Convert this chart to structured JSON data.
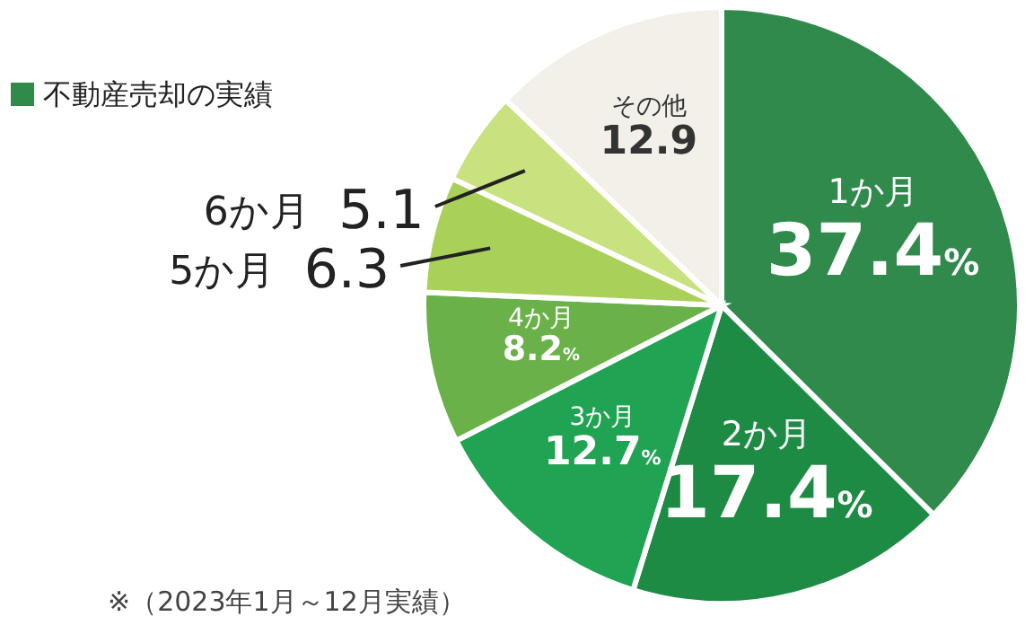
{
  "chart_data": {
    "type": "pie",
    "legend_title": "不動産売却の実績",
    "categories": [
      "1か月",
      "2か月",
      "3か月",
      "4か月",
      "5か月",
      "6か月",
      "その他"
    ],
    "values": [
      37.4,
      17.4,
      12.7,
      8.2,
      6.3,
      5.1,
      12.9
    ],
    "value_labels": [
      "37.4%",
      "17.4%",
      "12.7%",
      "8.2%",
      "6.3",
      "5.1",
      "12.9"
    ],
    "colors": [
      "#2f8a4c",
      "#1e8b45",
      "#20a352",
      "#6bb149",
      "#a9d15a",
      "#c8e27f",
      "#f3f0e9"
    ],
    "annotations": [
      "※（2023年1月～12月実績）"
    ]
  }
}
